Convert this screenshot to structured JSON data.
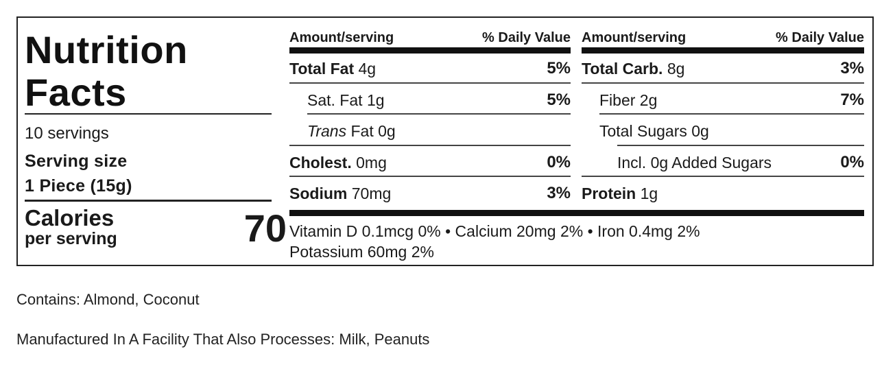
{
  "title_line1": "Nutrition",
  "title_line2": "Facts",
  "servings": "10 servings",
  "serving_size_label": "Serving size",
  "serving_size_value": "1 Piece (15g)",
  "calories_label": "Calories",
  "calories_sub": "per serving",
  "calories_value": "70",
  "header": {
    "amount": "Amount/serving",
    "dv": "% Daily Value"
  },
  "left_table": [
    {
      "name": "Total Fat",
      "amount": "4g",
      "dv": "5%"
    },
    {
      "name": "Sat. Fat",
      "amount": "1g",
      "dv": "5%"
    },
    {
      "name_italic": "Trans",
      "name": "Fat",
      "amount": "0g",
      "dv": ""
    },
    {
      "name": "Cholest.",
      "amount": "0mg",
      "dv": "0%"
    },
    {
      "name": "Sodium",
      "amount": "70mg",
      "dv": "3%"
    }
  ],
  "right_table": [
    {
      "name": "Total Carb.",
      "amount": "8g",
      "dv": "3%"
    },
    {
      "name": "Fiber",
      "amount": "2g",
      "dv": "7%"
    },
    {
      "name": "Total Sugars",
      "amount": "0g",
      "dv": ""
    },
    {
      "name": "Incl. 0g Added Sugars",
      "amount": "",
      "dv": "0%"
    },
    {
      "name": "Protein",
      "amount": "1g",
      "dv": ""
    }
  ],
  "vitamins_line1": "Vitamin D 0.1mcg 0% • Calcium 20mg 2% • Iron 0.4mg 2%",
  "vitamins_line2": "Potassium 60mg 2%",
  "contains": "Contains: Almond, Coconut",
  "facility": "Manufactured In A Facility That Also Processes: Milk, Peanuts"
}
